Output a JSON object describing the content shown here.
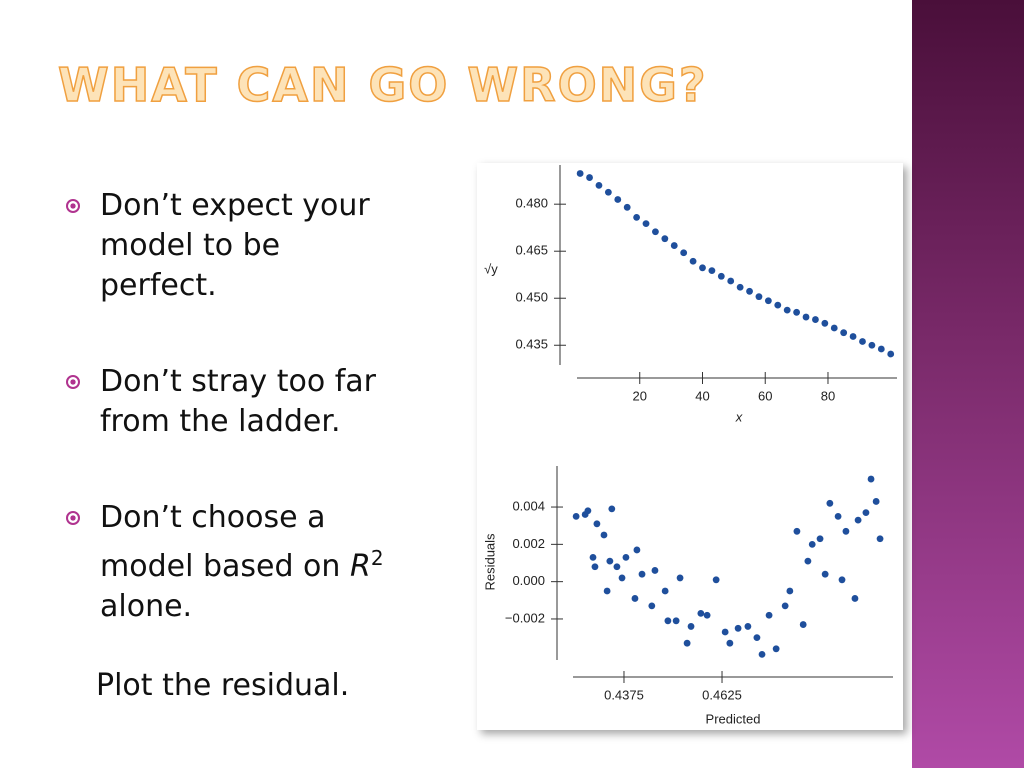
{
  "slide": {
    "title": "WHAT CAN GO WRONG?",
    "bullets": [
      {
        "text": "Don’t expect your model to be perfect."
      },
      {
        "text": "Don’t stray too far from the ladder."
      },
      {
        "parts": [
          "Don’t choose a model based on ",
          "R",
          "2",
          " alone."
        ]
      }
    ],
    "note": "Plot the residual."
  },
  "chart_data": [
    {
      "type": "scatter",
      "y_label": "√y",
      "x_label": "x",
      "color": "#1f4f9c",
      "x": [
        1,
        4,
        7,
        10,
        13,
        16,
        19,
        22,
        25,
        28,
        31,
        34,
        37,
        40,
        43,
        46,
        49,
        52,
        55,
        58,
        61,
        64,
        67,
        70,
        73,
        76,
        79,
        82,
        85,
        88,
        91,
        94,
        97,
        100
      ],
      "y": [
        0.4898,
        0.4885,
        0.486,
        0.4838,
        0.4815,
        0.479,
        0.4758,
        0.4738,
        0.4712,
        0.469,
        0.4668,
        0.4645,
        0.4618,
        0.4597,
        0.4588,
        0.457,
        0.4555,
        0.4535,
        0.4522,
        0.4505,
        0.4492,
        0.4478,
        0.4462,
        0.4455,
        0.444,
        0.4432,
        0.442,
        0.4405,
        0.439,
        0.4378,
        0.4362,
        0.435,
        0.4338,
        0.4322
      ],
      "xlim": [
        0,
        102
      ],
      "ylim": [
        0.4287,
        0.4925
      ],
      "xticks": [
        20,
        40,
        60,
        80
      ],
      "yticks": [
        {
          "value": 0.48,
          "label": "0.480"
        },
        {
          "value": 0.465,
          "label": "0.465"
        },
        {
          "value": 0.45,
          "label": "0.450"
        },
        {
          "value": 0.435,
          "label": "0.435"
        }
      ]
    },
    {
      "type": "scatter",
      "y_label": "Residuals",
      "x_label": "Predicted",
      "color": "#1f4f9c",
      "x": [
        0.4253,
        0.4276,
        0.4283,
        0.4306,
        0.4324,
        0.4344,
        0.4296,
        0.4301,
        0.4332,
        0.4339,
        0.4357,
        0.437,
        0.438,
        0.4403,
        0.4408,
        0.4421,
        0.4446,
        0.4454,
        0.448,
        0.4487,
        0.4508,
        0.4518,
        0.4536,
        0.4546,
        0.4571,
        0.4587,
        0.461,
        0.4633,
        0.4645,
        0.4666,
        0.4691,
        0.4714,
        0.4727,
        0.4745,
        0.4763,
        0.4786,
        0.4798,
        0.4816,
        0.4832,
        0.4844,
        0.4855,
        0.4875,
        0.4888,
        0.49,
        0.4921,
        0.4931,
        0.4941,
        0.4964,
        0.4972,
        0.4992,
        0.5005,
        0.5018,
        0.5028
      ],
      "y": [
        0.0035,
        0.0036,
        0.0038,
        0.0031,
        0.0025,
        0.0039,
        0.0013,
        0.0008,
        -0.0005,
        0.0011,
        0.0008,
        0.0002,
        0.0013,
        -0.0009,
        0.0017,
        0.0004,
        -0.0013,
        0.0006,
        -0.0005,
        -0.0021,
        -0.0021,
        0.0002,
        -0.0033,
        -0.0024,
        -0.0017,
        -0.0018,
        0.0001,
        -0.0027,
        -0.0033,
        -0.0025,
        -0.0024,
        -0.003,
        -0.0039,
        -0.0018,
        -0.0036,
        -0.0013,
        -0.0005,
        0.0027,
        -0.0023,
        0.0011,
        0.002,
        0.0023,
        0.0004,
        0.0042,
        0.0035,
        0.0001,
        0.0027,
        -0.0009,
        0.0033,
        0.0037,
        0.0055,
        0.0043,
        0.0023
      ],
      "xlim": [
        0.4245,
        0.5061
      ],
      "ylim": [
        -0.0042,
        0.0062
      ],
      "xticks": [
        0.4375,
        0.4625
      ],
      "yticks": [
        {
          "value": 0.004,
          "label": "0.004"
        },
        {
          "value": 0.002,
          "label": "0.002"
        },
        {
          "value": 0,
          "label": "0.000"
        },
        {
          "value": -0.002,
          "label": "−0.002"
        }
      ]
    }
  ]
}
